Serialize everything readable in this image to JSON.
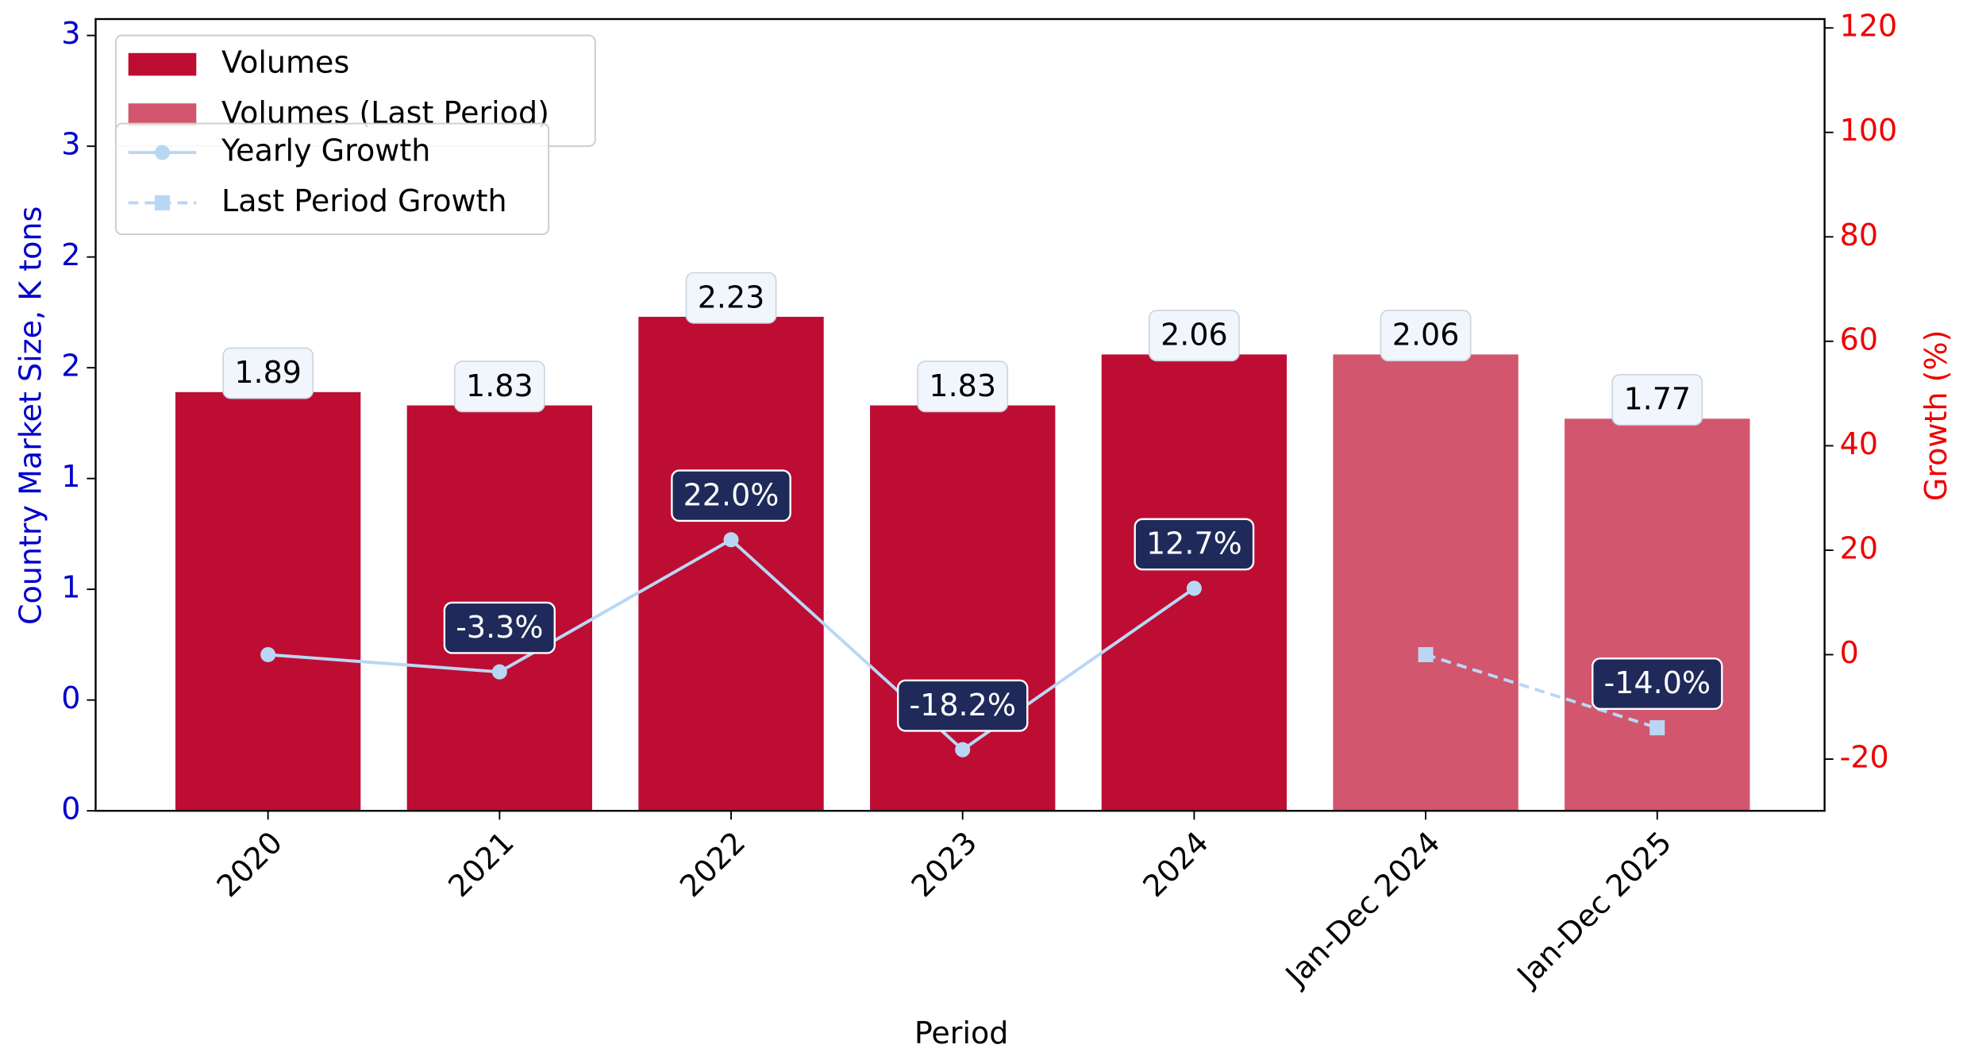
{
  "chart_data": {
    "type": "bar",
    "x_label": "Period",
    "y_label": "Country Market Size, K tons",
    "y2_label": "Growth (%)",
    "categories": [
      "2020",
      "2021",
      "2022",
      "2023",
      "2024",
      "Jan-Dec 2024",
      "Jan-Dec 2025"
    ],
    "series": [
      {
        "name": "Volumes",
        "type": "bar",
        "color": "#bd0d33",
        "values": [
          1.89,
          1.83,
          2.23,
          1.83,
          2.06,
          null,
          null
        ]
      },
      {
        "name": "Volumes (Last Period)",
        "type": "bar",
        "color": "#d1566e",
        "values": [
          null,
          null,
          null,
          null,
          null,
          2.06,
          1.77
        ]
      },
      {
        "name": "Yearly Growth",
        "type": "line",
        "axis": "y2",
        "color": "#b9d7f5",
        "marker": "circle",
        "dash": false,
        "values": [
          0,
          -3.3,
          22.0,
          -18.2,
          12.7,
          null,
          null
        ],
        "value_labels": [
          null,
          "-3.3%",
          "22.0%",
          "-18.2%",
          "12.7%",
          null,
          null
        ]
      },
      {
        "name": "Last Period Growth",
        "type": "line",
        "axis": "y2",
        "color": "#b9d7f5",
        "marker": "square",
        "dash": true,
        "values": [
          null,
          null,
          null,
          null,
          null,
          0,
          -14.0
        ],
        "value_labels": [
          null,
          null,
          null,
          null,
          null,
          null,
          "-14.0%"
        ]
      }
    ],
    "ylim": [
      0,
      3.574
    ],
    "yticks": [
      {
        "value": 0,
        "label": "0"
      },
      {
        "value": 0.5,
        "label": "0"
      },
      {
        "value": 1,
        "label": "1"
      },
      {
        "value": 1.5,
        "label": "1"
      },
      {
        "value": 2,
        "label": "2"
      },
      {
        "value": 2.5,
        "label": "2"
      },
      {
        "value": 3,
        "label": "3"
      },
      {
        "value": 3.5,
        "label": "3"
      }
    ],
    "y2lim": [
      -29.9,
      121.7
    ],
    "y2ticks": [
      -20,
      0,
      20,
      40,
      60,
      80,
      100,
      120
    ],
    "y_color": "#0000cc",
    "y2_color": "#ee0000"
  }
}
